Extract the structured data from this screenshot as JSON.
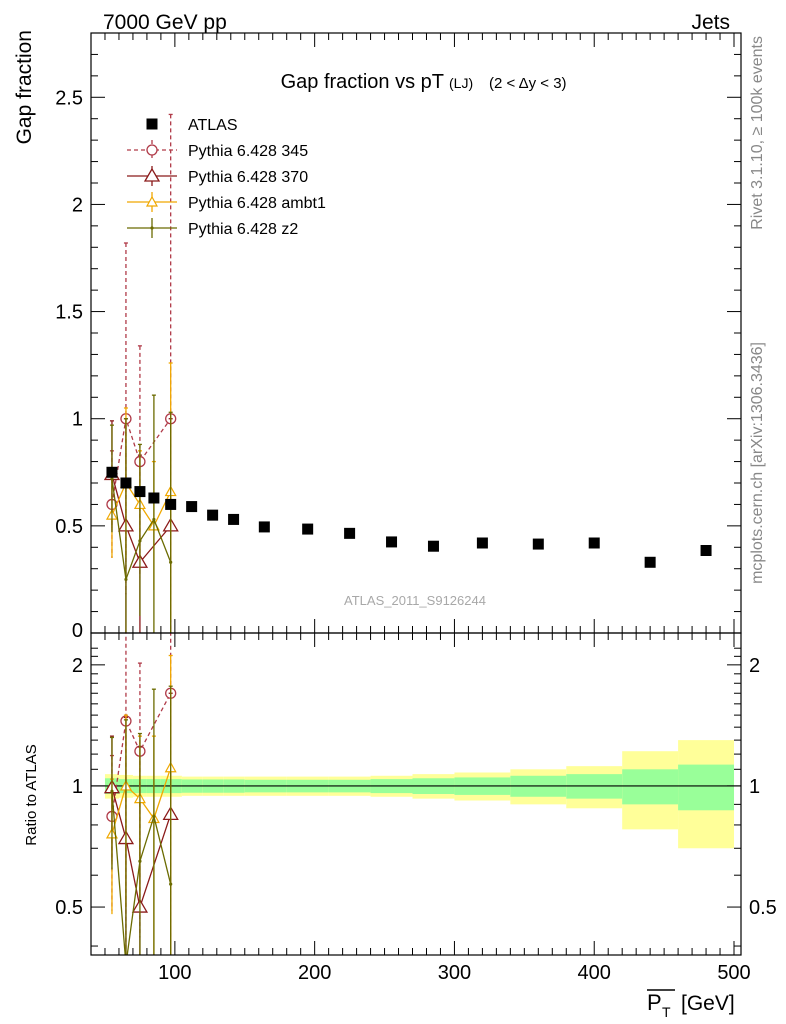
{
  "header": {
    "left": "7000 GeV pp",
    "right": "Jets"
  },
  "side_labels": {
    "rivet": "Rivet 3.1.10, ≥ 100k events",
    "mcplots": "mcplots.cern.ch [arXiv:1306.3436]"
  },
  "colors": {
    "atlas": "#000000",
    "p345": "#b03a48",
    "p370": "#8b1a1a",
    "ambt1": "#f0a800",
    "z2": "#6b6b00",
    "band_inner": "#99ff99",
    "band_outer": "#ffff99",
    "watermark": "#a8a8a8"
  },
  "chart_data": [
    {
      "type": "scatter",
      "title": "Gap fraction vs pT",
      "title_sub": "(LJ)",
      "title_cond": "(2 < Δy < 3)",
      "xlabel": "P_T [GeV]",
      "ylabel": "Gap fraction",
      "watermark": "ATLAS_2011_S9126244",
      "xlim": [
        40,
        505
      ],
      "ylim": [
        0,
        2.8
      ],
      "x_ticks": [
        100,
        200,
        300,
        400,
        500
      ],
      "y_ticks": [
        0.5,
        1,
        1.5,
        2,
        2.5
      ],
      "y_tick_labels": [
        "0.5",
        "1",
        "1.5",
        "2",
        "2.5"
      ],
      "y_bottom_label": "0",
      "legend_position": "top-left",
      "legend": [
        "ATLAS",
        "Pythia 6.428 345",
        "Pythia 6.428 370",
        "Pythia 6.428 ambt1",
        "Pythia 6.428 z2"
      ],
      "series": [
        {
          "name": "ATLAS",
          "marker": "square",
          "x": [
            55,
            65,
            75,
            85,
            97,
            112,
            127,
            142,
            164,
            195,
            225,
            255,
            285,
            320,
            360,
            400,
            440,
            480
          ],
          "y": [
            0.75,
            0.7,
            0.66,
            0.63,
            0.6,
            0.59,
            0.55,
            0.53,
            0.495,
            0.485,
            0.465,
            0.425,
            0.405,
            0.42,
            0.415,
            0.42,
            0.33,
            0.385
          ]
        },
        {
          "name": "Pythia 6.428 345",
          "marker": "circle",
          "style": "dashed",
          "x": [
            55,
            65,
            75,
            97
          ],
          "y": [
            0.6,
            1.0,
            0.8,
            1.0
          ],
          "err_lo": [
            0.25,
            0.82,
            0.54,
            1.0
          ],
          "err_hi": [
            0.25,
            0.82,
            0.54,
            1.42
          ]
        },
        {
          "name": "Pythia 6.428 370",
          "marker": "triangle",
          "x": [
            55,
            65,
            75,
            97
          ],
          "y": [
            0.74,
            0.5,
            0.33,
            0.5
          ],
          "err_lo": [
            0.25,
            0.5,
            0.33,
            0.5
          ],
          "err_hi": [
            0.25,
            0.5,
            0.5,
            0.5
          ]
        },
        {
          "name": "Pythia 6.428 ambt1",
          "marker": "small-triangle",
          "x": [
            55,
            65,
            75,
            85,
            97
          ],
          "y": [
            0.55,
            0.7,
            0.6,
            0.5,
            0.66
          ],
          "err_lo": [
            0.2,
            0.35,
            0.25,
            0.3,
            0.6
          ],
          "err_hi": [
            0.2,
            0.35,
            0.25,
            0.3,
            0.6
          ]
        },
        {
          "name": "Pythia 6.428 z2",
          "marker": "dot",
          "x": [
            55,
            65,
            75,
            85,
            97
          ],
          "y": [
            0.72,
            0.25,
            0.43,
            0.53,
            0.33
          ],
          "err_lo": [
            0.25,
            0.25,
            0.35,
            0.55,
            0.33
          ],
          "err_hi": [
            0.25,
            0.75,
            0.45,
            0.58,
            0.7
          ]
        }
      ]
    },
    {
      "type": "scatter",
      "ylabel": "Ratio to ATLAS",
      "scale": "log",
      "xlim": [
        40,
        505
      ],
      "ylim": [
        0.38,
        2.4
      ],
      "x_ticks": [
        100,
        200,
        300,
        400,
        500
      ],
      "x_tick_labels": [
        "100",
        "200",
        "300",
        "400",
        "500"
      ],
      "y_ticks": [
        0.5,
        1,
        2
      ],
      "y_tick_labels": [
        "0.5",
        "1",
        "2"
      ],
      "bands": {
        "edges": [
          50,
          60,
          70,
          80,
          90,
          105,
          120,
          135,
          150,
          180,
          210,
          240,
          270,
          300,
          340,
          380,
          420,
          460,
          500
        ],
        "inner": [
          0.045,
          0.04,
          0.04,
          0.04,
          0.04,
          0.038,
          0.038,
          0.038,
          0.036,
          0.036,
          0.036,
          0.04,
          0.045,
          0.05,
          0.06,
          0.07,
          0.1,
          0.13,
          0.14
        ],
        "outer": [
          0.07,
          0.065,
          0.06,
          0.06,
          0.06,
          0.055,
          0.055,
          0.055,
          0.055,
          0.055,
          0.055,
          0.06,
          0.07,
          0.08,
          0.1,
          0.12,
          0.22,
          0.3,
          0.32
        ]
      },
      "series": [
        {
          "name": "Pythia 6.428 345",
          "x": [
            55,
            65,
            75,
            97
          ],
          "y": [
            0.84,
            1.45,
            1.22,
            1.7
          ],
          "err_lo": [
            0.35,
            1.2,
            0.8,
            1.5
          ],
          "err_hi": [
            0.35,
            1.2,
            0.8,
            1.5
          ]
        },
        {
          "name": "Pythia 6.428 370",
          "x": [
            55,
            65,
            75,
            97
          ],
          "y": [
            0.99,
            0.74,
            0.5,
            0.85
          ],
          "err_lo": [
            0.34,
            0.74,
            0.5,
            0.85
          ],
          "err_hi": [
            0.34,
            0.74,
            0.75,
            0.85
          ]
        },
        {
          "name": "Pythia 6.428 ambt1",
          "x": [
            55,
            65,
            75,
            85,
            97
          ],
          "y": [
            0.76,
            1.0,
            0.93,
            0.83,
            1.11
          ],
          "err_lo": [
            0.28,
            0.5,
            0.4,
            0.5,
            1.0
          ],
          "err_hi": [
            0.28,
            0.5,
            0.4,
            0.5,
            1.0
          ]
        },
        {
          "name": "Pythia 6.428 z2",
          "x": [
            55,
            65,
            75,
            85,
            97
          ],
          "y": [
            0.97,
            0.36,
            0.65,
            0.84,
            0.57
          ],
          "err_lo": [
            0.35,
            0.36,
            0.55,
            0.9,
            0.57
          ],
          "err_hi": [
            0.35,
            1.1,
            0.7,
            0.9,
            1.2
          ]
        }
      ]
    }
  ]
}
